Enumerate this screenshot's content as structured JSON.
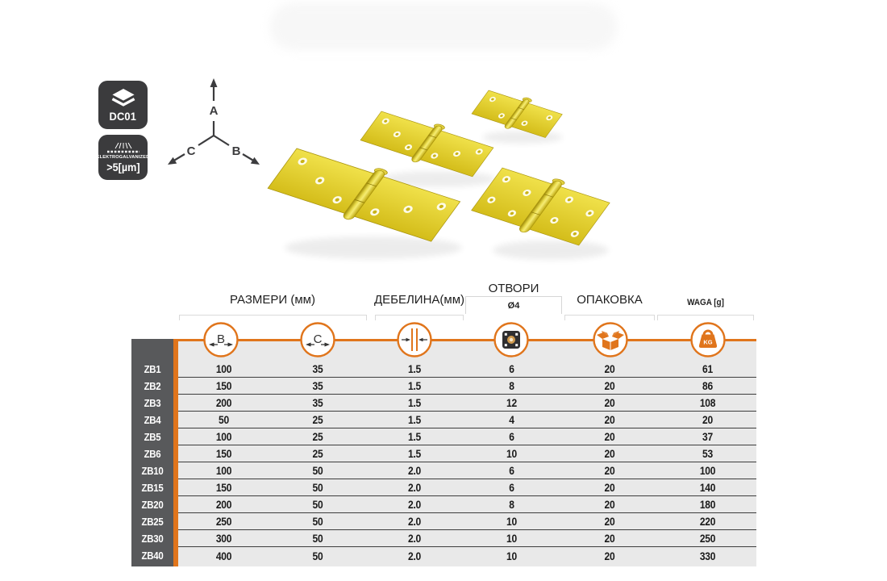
{
  "badges": {
    "dc01": {
      "icon": "layers-icon",
      "label": "DC01"
    },
    "galvanized": {
      "icon": "coating-icon",
      "label": "ELEKTROGALVANIZED",
      "sublabel": ">5[µm]"
    }
  },
  "axes": {
    "up": "A",
    "right": "B",
    "left": "C"
  },
  "colors": {
    "accent_orange": "#e0751c",
    "badge_bg": "#3b3b3d",
    "label_column_bg": "#58595b",
    "table_row_bg": "#e9e9e9",
    "hinge_yellow": "#e6d22a"
  },
  "table": {
    "group_headers": {
      "sizes": "РАЗМЕРИ (мм)",
      "thickness": "ДЕБЕЛИНА(мм)",
      "holes": "ОТВОРИ",
      "holes_sub": "Ø4",
      "packing": "ОПАКОВКА",
      "weight": "WAGA [g]"
    },
    "column_icons": [
      "dimension-b-icon",
      "dimension-c-icon",
      "thickness-icon",
      "hole-plate-icon",
      "packaging-box-icon",
      "weight-kg-icon"
    ],
    "icon_letters": {
      "b": "B",
      "c": "C",
      "kg": "KG"
    },
    "columns": [
      "B",
      "C",
      "thickness",
      "holes",
      "pack",
      "weight_g"
    ],
    "rows": [
      {
        "id": "ZB1",
        "values": [
          "100",
          "35",
          "1.5",
          "6",
          "20",
          "61"
        ]
      },
      {
        "id": "ZB2",
        "values": [
          "150",
          "35",
          "1.5",
          "8",
          "20",
          "86"
        ]
      },
      {
        "id": "ZB3",
        "values": [
          "200",
          "35",
          "1.5",
          "12",
          "20",
          "108"
        ]
      },
      {
        "id": "ZB4",
        "values": [
          "50",
          "25",
          "1.5",
          "4",
          "20",
          "20"
        ]
      },
      {
        "id": "ZB5",
        "values": [
          "100",
          "25",
          "1.5",
          "6",
          "20",
          "37"
        ]
      },
      {
        "id": "ZB6",
        "values": [
          "150",
          "25",
          "1.5",
          "10",
          "20",
          "53"
        ]
      },
      {
        "id": "ZB10",
        "values": [
          "100",
          "50",
          "2.0",
          "6",
          "20",
          "100"
        ]
      },
      {
        "id": "ZB15",
        "values": [
          "150",
          "50",
          "2.0",
          "6",
          "20",
          "140"
        ]
      },
      {
        "id": "ZB20",
        "values": [
          "200",
          "50",
          "2.0",
          "8",
          "20",
          "180"
        ]
      },
      {
        "id": "ZB25",
        "values": [
          "250",
          "50",
          "2.0",
          "10",
          "20",
          "220"
        ]
      },
      {
        "id": "ZB30",
        "values": [
          "300",
          "50",
          "2.0",
          "10",
          "20",
          "250"
        ]
      },
      {
        "id": "ZB40",
        "values": [
          "400",
          "50",
          "2.0",
          "10",
          "20",
          "330"
        ]
      }
    ]
  }
}
